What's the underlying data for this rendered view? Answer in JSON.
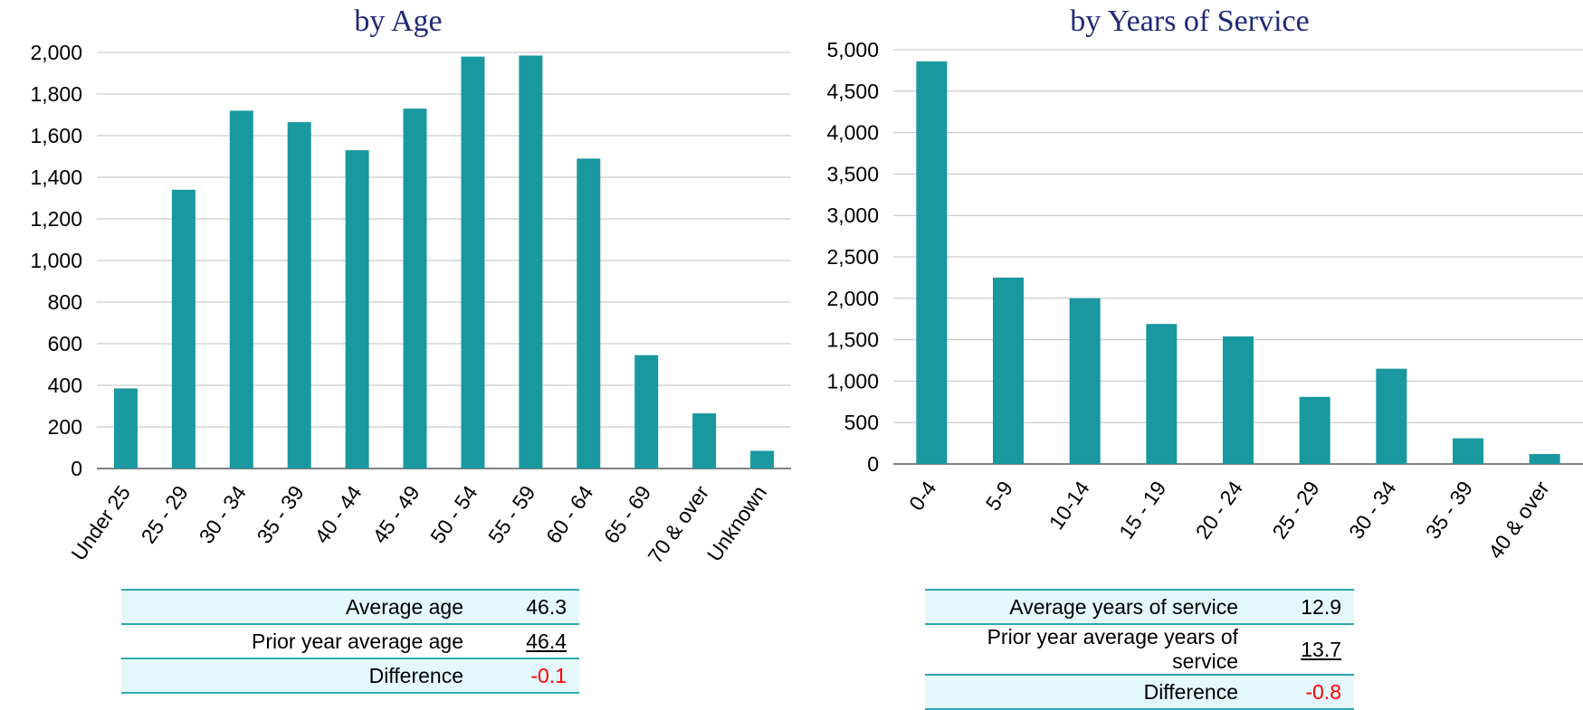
{
  "colors": {
    "bar": "#19989F",
    "title": "#1F2A78",
    "grid": "#BFBFBF",
    "negative": "#FF0000",
    "table_shade": "#E4F8FB",
    "table_line": "#2AA8B4"
  },
  "chart_data": [
    {
      "type": "bar",
      "title": "by Age",
      "categories": [
        "Under 25",
        "25 - 29",
        "30 - 34",
        "35 - 39",
        "40 - 44",
        "45 - 49",
        "50 - 54",
        "55 - 59",
        "60 - 64",
        "65 - 69",
        "70 & over",
        "Unknown"
      ],
      "values": [
        385,
        1340,
        1720,
        1665,
        1530,
        1730,
        1980,
        1985,
        1490,
        545,
        265,
        85
      ],
      "yticks": [
        "0",
        "200",
        "400",
        "600",
        "800",
        "1,000",
        "1,200",
        "1,400",
        "1,600",
        "1,800",
        "2,000"
      ],
      "ylim": [
        0,
        2000
      ],
      "grid": true,
      "xlabel": "",
      "ylabel": ""
    },
    {
      "type": "bar",
      "title": "by Years of Service",
      "categories": [
        "0-4",
        "5-9",
        "10-14",
        "15 - 19",
        "20 - 24",
        "25 - 29",
        "30 - 34",
        "35 - 39",
        "40 & over"
      ],
      "values": [
        4860,
        2250,
        2000,
        1690,
        1540,
        810,
        1150,
        310,
        120
      ],
      "yticks": [
        "0",
        "500",
        "1,000",
        "1,500",
        "2,000",
        "2,500",
        "3,000",
        "3,500",
        "4,000",
        "4,500",
        "5,000"
      ],
      "ylim": [
        0,
        5000
      ],
      "grid": true,
      "xlabel": "",
      "ylabel": ""
    }
  ],
  "tables": {
    "age": {
      "rows": [
        {
          "label": "Average age",
          "value": "46.3"
        },
        {
          "label": "Prior year average age",
          "value": "46.4"
        },
        {
          "label": "Difference",
          "value": "-0.1"
        }
      ]
    },
    "service": {
      "rows": [
        {
          "label": "Average years of service",
          "value": "12.9"
        },
        {
          "label": "Prior year average years of service",
          "value": "13.7"
        },
        {
          "label": "Difference",
          "value": "-0.8"
        }
      ]
    }
  }
}
